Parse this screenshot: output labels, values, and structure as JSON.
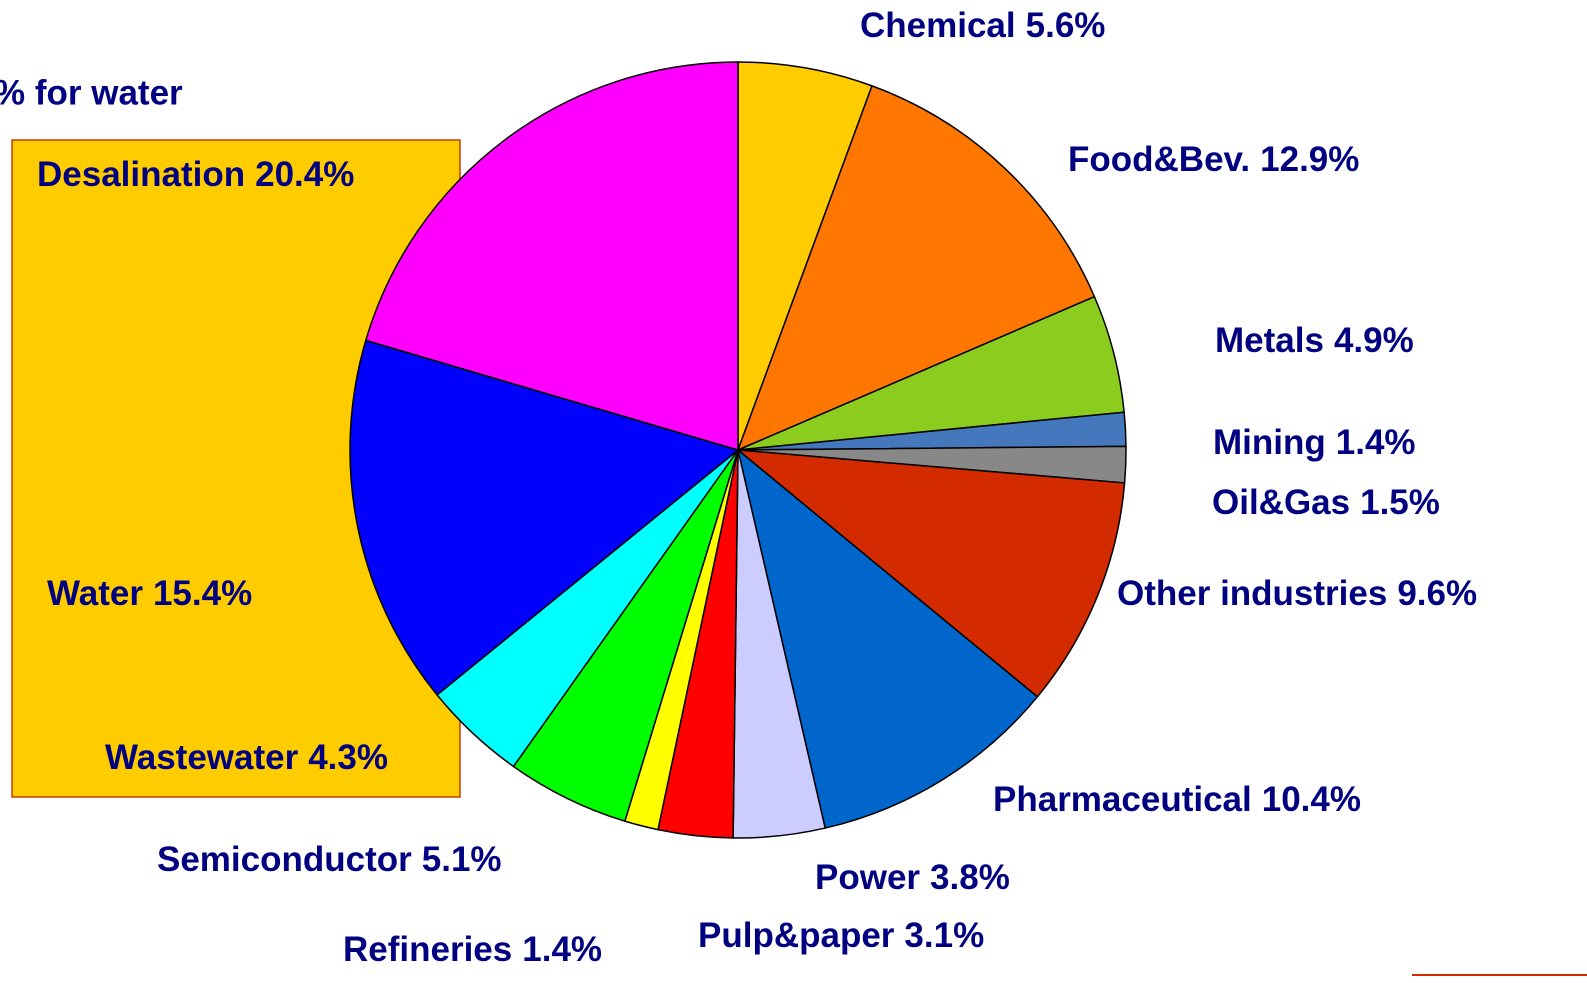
{
  "chart_data": {
    "type": "pie",
    "title": "% for water",
    "categories": [
      "Chemical",
      "Food&Bev.",
      "Metals",
      "Mining",
      "Oil&Gas",
      "Other industries",
      "Pharmaceutical",
      "Power",
      "Pulp&paper",
      "Refineries",
      "Semiconductor",
      "Wastewater",
      "Water",
      "Desalination"
    ],
    "values": [
      5.6,
      12.9,
      4.9,
      1.4,
      1.5,
      9.6,
      10.4,
      3.8,
      3.1,
      1.4,
      5.1,
      4.3,
      15.4,
      20.4
    ],
    "value_labels": [
      "5.6%",
      "12.9%",
      "4.9%",
      "1.4%",
      "1.5%",
      "9.6%",
      "10.4%",
      "3.8%",
      "3.1%",
      "1.4%",
      "5.1%",
      "4.3%",
      "15.4%",
      "20.4%"
    ],
    "colors": [
      "#ffcc00",
      "#ff7700",
      "#8ccc1e",
      "#4477bb",
      "#888888",
      "#d42a00",
      "#0066cc",
      "#ccccff",
      "#ff0000",
      "#ffff00",
      "#00ff00",
      "#00ffff",
      "#0000ff",
      "#ff00ff"
    ]
  }
}
